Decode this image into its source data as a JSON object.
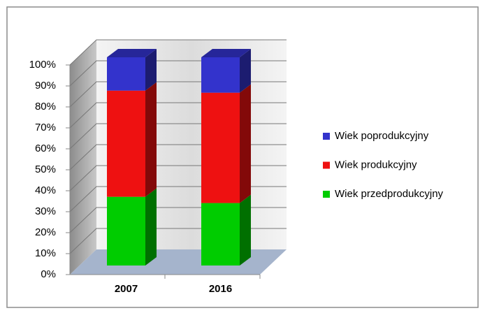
{
  "chart_data": {
    "type": "stacked_bar_3d",
    "categories": [
      "2007",
      "2016"
    ],
    "series": [
      {
        "name": "Wiek przedprodukcyjny",
        "color": "#00cc00",
        "values": [
          33,
          30
        ]
      },
      {
        "name": "Wiek produkcyjny",
        "color": "#ee1111",
        "values": [
          51,
          53
        ]
      },
      {
        "name": "Wiek poprodukcyjny",
        "color": "#3333cc",
        "values": [
          16,
          17
        ]
      }
    ],
    "ylim": [
      0,
      100
    ],
    "yticks": [
      {
        "value": 0,
        "label": "0%"
      },
      {
        "value": 10,
        "label": "10%"
      },
      {
        "value": 20,
        "label": "20%"
      },
      {
        "value": 30,
        "label": "30%"
      },
      {
        "value": 40,
        "label": "40%"
      },
      {
        "value": 50,
        "label": "50%"
      },
      {
        "value": 60,
        "label": "60%"
      },
      {
        "value": 70,
        "label": "70%"
      },
      {
        "value": 80,
        "label": "80%"
      },
      {
        "value": 90,
        "label": "90%"
      },
      {
        "value": 100,
        "label": "100%"
      }
    ],
    "grid": true,
    "legend": "right"
  }
}
